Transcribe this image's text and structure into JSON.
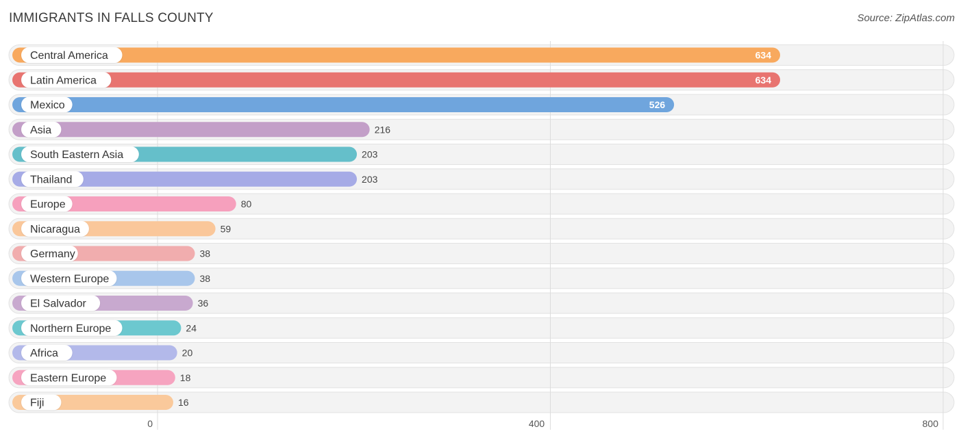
{
  "header": {
    "title": "IMMIGRANTS IN FALLS COUNTY",
    "source": "Source: ZipAtlas.com"
  },
  "chart_data": {
    "type": "bar",
    "orientation": "horizontal",
    "title": "IMMIGRANTS IN FALLS COUNTY",
    "xlabel": "",
    "ylabel": "",
    "xlim": [
      0,
      800
    ],
    "xticks": [
      0,
      400,
      800
    ],
    "grid": true,
    "categories": [
      "Central America",
      "Latin America",
      "Mexico",
      "Asia",
      "South Eastern Asia",
      "Thailand",
      "Europe",
      "Nicaragua",
      "Germany",
      "Western Europe",
      "El Salvador",
      "Northern Europe",
      "Africa",
      "Eastern Europe",
      "Fiji"
    ],
    "values": [
      634,
      634,
      526,
      216,
      203,
      203,
      80,
      59,
      38,
      38,
      36,
      24,
      20,
      18,
      16
    ],
    "colors": [
      "#F8A95E",
      "#E87470",
      "#6FA5DD",
      "#C39FC8",
      "#65BFCA",
      "#A6ABE6",
      "#F6A0BD",
      "#FAC79A",
      "#F1ADAE",
      "#A8C6EB",
      "#C8A9CF",
      "#6CC8CF",
      "#B3B9EA",
      "#F6A4C0",
      "#FAC99B"
    ],
    "labels_inside": [
      true,
      true,
      true,
      false,
      false,
      false,
      false,
      false,
      false,
      false,
      false,
      false,
      false,
      false,
      false
    ]
  }
}
